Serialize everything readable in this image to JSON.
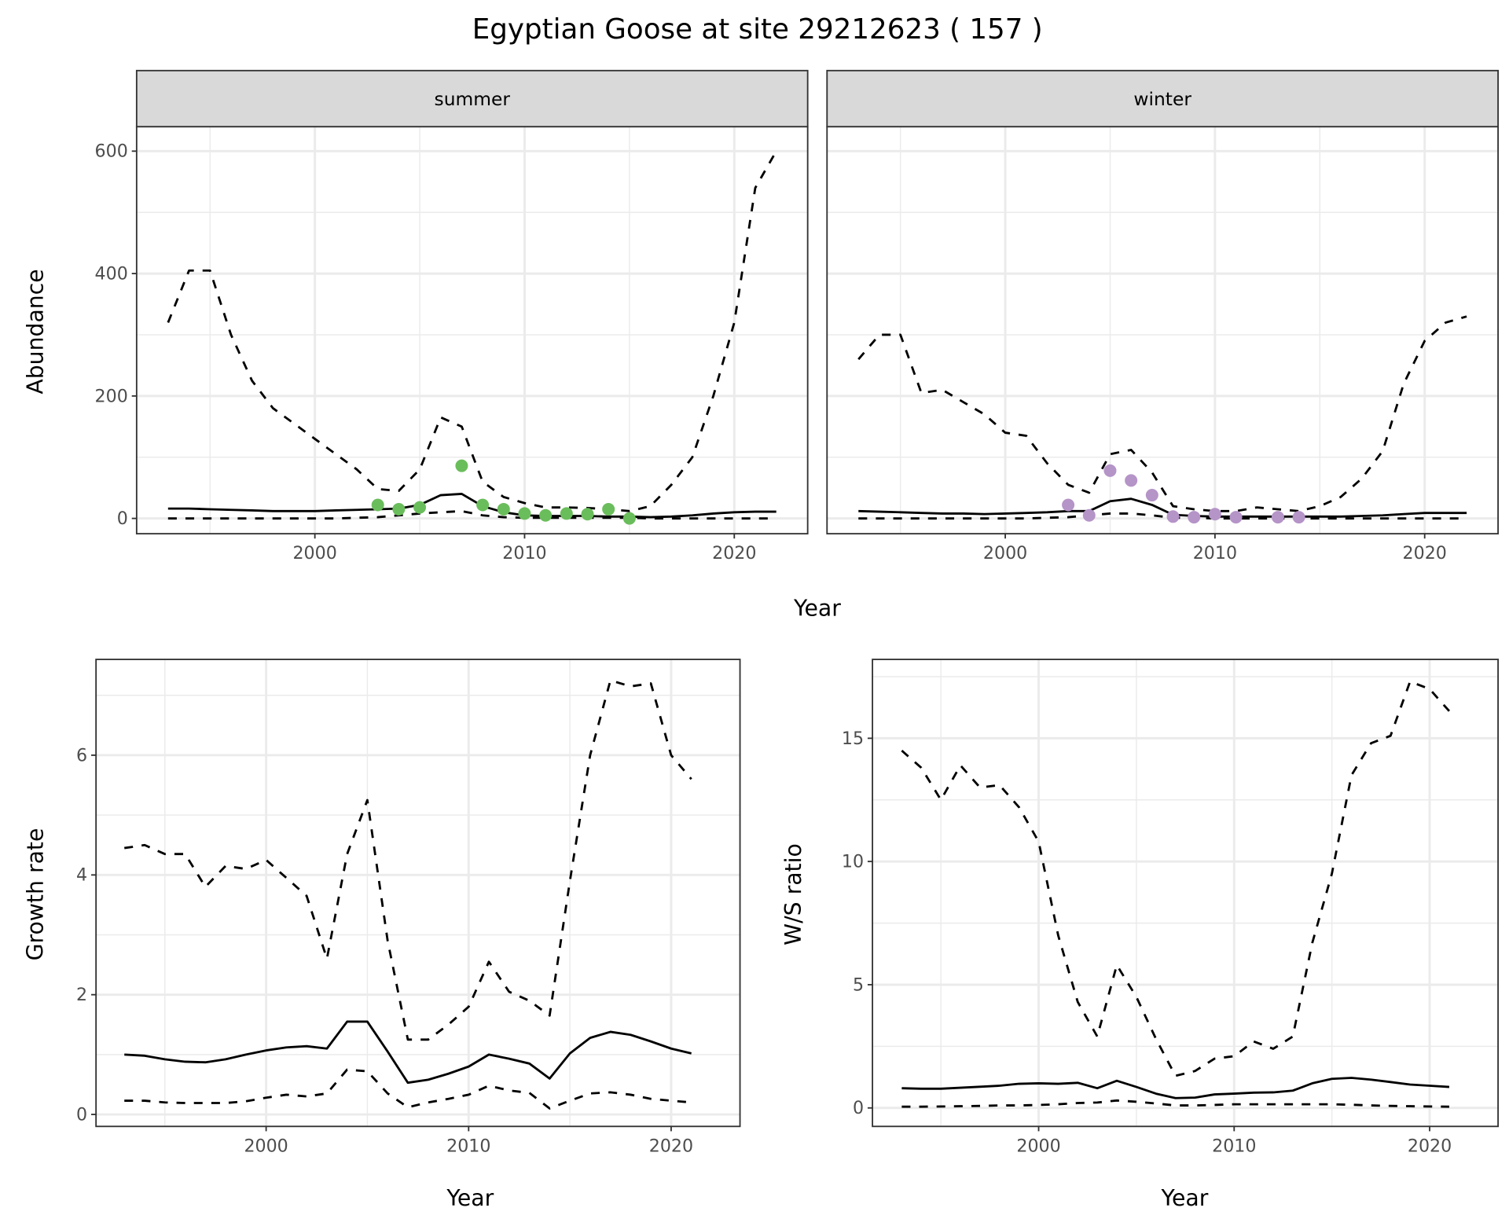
{
  "chart_data": [
    {
      "type": "line",
      "panel": "summer",
      "title": "Egyptian Goose at site 29212623 ( 157 )",
      "strip_label": "summer",
      "xlabel": "Year",
      "ylabel": "Abundance",
      "xlim": [
        1991.5,
        2023.5
      ],
      "ylim": [
        -25,
        640
      ],
      "xticks": [
        2000,
        2010,
        2020
      ],
      "yticks": [
        0,
        200,
        400,
        600
      ],
      "x": [
        1993,
        1994,
        1995,
        1996,
        1997,
        1998,
        1999,
        2000,
        2001,
        2002,
        2003,
        2004,
        2005,
        2006,
        2007,
        2008,
        2009,
        2010,
        2011,
        2012,
        2013,
        2014,
        2015,
        2016,
        2017,
        2018,
        2019,
        2020,
        2021,
        2022
      ],
      "series": [
        {
          "name": "upper",
          "style": "dashed",
          "values": [
            320,
            405,
            405,
            300,
            225,
            180,
            155,
            130,
            105,
            80,
            48,
            45,
            80,
            165,
            150,
            60,
            35,
            25,
            18,
            18,
            17,
            15,
            12,
            20,
            55,
            100,
            200,
            320,
            540,
            600
          ]
        },
        {
          "name": "estimate",
          "style": "solid",
          "values": [
            16,
            16,
            15,
            14,
            13,
            12,
            12,
            12,
            13,
            14,
            15,
            16,
            22,
            38,
            40,
            20,
            10,
            5,
            4,
            4,
            4,
            3,
            3,
            2,
            3,
            5,
            8,
            10,
            11,
            11
          ]
        },
        {
          "name": "lower",
          "style": "dashed",
          "values": [
            0,
            0,
            0,
            0,
            0,
            0,
            0,
            0,
            0,
            1,
            2,
            5,
            8,
            10,
            12,
            5,
            2,
            1,
            1,
            1,
            1,
            1,
            1,
            0,
            0,
            0,
            0,
            0,
            0,
            0
          ]
        }
      ],
      "points": {
        "color": "#6abd5b",
        "x": [
          2003,
          2004,
          2005,
          2007,
          2008,
          2009,
          2010,
          2011,
          2012,
          2013,
          2014,
          2015
        ],
        "y": [
          22,
          15,
          18,
          86,
          22,
          15,
          8,
          5,
          8,
          7,
          15,
          0
        ]
      }
    },
    {
      "type": "line",
      "panel": "winter",
      "strip_label": "winter",
      "xlabel": "Year",
      "ylabel": "Abundance",
      "xlim": [
        1991.5,
        2023.5
      ],
      "ylim": [
        -25,
        640
      ],
      "xticks": [
        2000,
        2010,
        2020
      ],
      "yticks": [],
      "x": [
        1993,
        1994,
        1995,
        1996,
        1997,
        1998,
        1999,
        2000,
        2001,
        2002,
        2003,
        2004,
        2005,
        2006,
        2007,
        2008,
        2009,
        2010,
        2011,
        2012,
        2013,
        2014,
        2015,
        2016,
        2017,
        2018,
        2019,
        2020,
        2021,
        2022
      ],
      "series": [
        {
          "name": "upper",
          "style": "dashed",
          "values": [
            260,
            300,
            300,
            205,
            210,
            190,
            170,
            140,
            135,
            90,
            55,
            42,
            105,
            112,
            75,
            20,
            15,
            12,
            12,
            18,
            15,
            12,
            20,
            35,
            65,
            110,
            220,
            290,
            320,
            330
          ]
        },
        {
          "name": "estimate",
          "style": "solid",
          "values": [
            12,
            11,
            10,
            9,
            8,
            8,
            7,
            8,
            9,
            10,
            12,
            12,
            28,
            32,
            22,
            6,
            4,
            3,
            3,
            3,
            3,
            3,
            3,
            3,
            4,
            5,
            7,
            9,
            9,
            9
          ]
        },
        {
          "name": "lower",
          "style": "dashed",
          "values": [
            0,
            0,
            0,
            0,
            0,
            0,
            0,
            0,
            0,
            1,
            2,
            5,
            8,
            8,
            5,
            1,
            1,
            0,
            0,
            0,
            0,
            0,
            0,
            0,
            0,
            0,
            0,
            0,
            0,
            0
          ]
        }
      ],
      "points": {
        "color": "#b594c8",
        "x": [
          2003,
          2004,
          2005,
          2006,
          2007,
          2008,
          2009,
          2010,
          2011,
          2013,
          2014
        ],
        "y": [
          22,
          5,
          78,
          62,
          38,
          3,
          2,
          7,
          2,
          2,
          2
        ]
      }
    },
    {
      "type": "line",
      "panel": "growth",
      "xlabel": "Year",
      "ylabel": "Growth rate",
      "xlim": [
        1991.6,
        2023.4
      ],
      "ylim": [
        -0.2,
        7.6
      ],
      "xticks": [
        2000,
        2010,
        2020
      ],
      "yticks": [
        0,
        2,
        4,
        6
      ],
      "x": [
        1993,
        1994,
        1995,
        1996,
        1997,
        1998,
        1999,
        2000,
        2001,
        2002,
        2003,
        2004,
        2005,
        2006,
        2007,
        2008,
        2009,
        2010,
        2011,
        2012,
        2013,
        2014,
        2015,
        2016,
        2017,
        2018,
        2019,
        2020,
        2021
      ],
      "series": [
        {
          "name": "upper",
          "style": "dashed",
          "values": [
            4.45,
            4.5,
            4.35,
            4.35,
            3.8,
            4.15,
            4.1,
            4.25,
            3.95,
            3.65,
            2.6,
            4.35,
            5.25,
            2.9,
            1.25,
            1.25,
            1.5,
            1.8,
            2.55,
            2.05,
            1.9,
            1.65,
            3.9,
            6.0,
            7.25,
            7.15,
            7.2,
            6.0,
            5.6
          ]
        },
        {
          "name": "estimate",
          "style": "solid",
          "values": [
            1.0,
            0.98,
            0.92,
            0.88,
            0.87,
            0.92,
            1.0,
            1.07,
            1.12,
            1.14,
            1.1,
            1.55,
            1.55,
            1.05,
            0.53,
            0.58,
            0.68,
            0.8,
            1.0,
            0.93,
            0.85,
            0.6,
            1.02,
            1.28,
            1.38,
            1.33,
            1.22,
            1.1,
            1.02
          ]
        },
        {
          "name": "lower",
          "style": "dashed",
          "values": [
            0.23,
            0.23,
            0.2,
            0.19,
            0.19,
            0.19,
            0.22,
            0.28,
            0.33,
            0.3,
            0.35,
            0.75,
            0.72,
            0.35,
            0.12,
            0.2,
            0.26,
            0.33,
            0.48,
            0.4,
            0.36,
            0.1,
            0.23,
            0.35,
            0.37,
            0.33,
            0.26,
            0.23,
            0.2
          ]
        }
      ]
    },
    {
      "type": "line",
      "panel": "ws_ratio",
      "xlabel": "Year",
      "ylabel": "W/S ratio",
      "xlim": [
        1991.5,
        2023.5
      ],
      "ylim": [
        -0.75,
        18.2
      ],
      "xticks": [
        2000,
        2010,
        2020
      ],
      "yticks": [
        0,
        5,
        10,
        15
      ],
      "x": [
        1993,
        1994,
        1995,
        1996,
        1997,
        1998,
        1999,
        2000,
        2001,
        2002,
        2003,
        2004,
        2005,
        2006,
        2007,
        2008,
        2009,
        2010,
        2011,
        2012,
        2013,
        2014,
        2015,
        2016,
        2017,
        2018,
        2019,
        2020,
        2021
      ],
      "series": [
        {
          "name": "upper",
          "style": "dashed",
          "values": [
            14.5,
            13.8,
            12.5,
            13.9,
            13.0,
            13.1,
            12.2,
            10.8,
            7.0,
            4.3,
            2.9,
            5.8,
            4.5,
            2.8,
            1.3,
            1.5,
            2.0,
            2.1,
            2.7,
            2.4,
            2.9,
            6.7,
            9.5,
            13.5,
            14.8,
            15.1,
            17.3,
            17.0,
            16.1
          ]
        },
        {
          "name": "estimate",
          "style": "solid",
          "values": [
            0.8,
            0.78,
            0.78,
            0.82,
            0.86,
            0.9,
            0.98,
            1.0,
            0.98,
            1.02,
            0.8,
            1.1,
            0.85,
            0.58,
            0.4,
            0.42,
            0.55,
            0.58,
            0.62,
            0.63,
            0.7,
            1.0,
            1.18,
            1.22,
            1.15,
            1.05,
            0.95,
            0.9,
            0.85
          ]
        },
        {
          "name": "lower",
          "style": "dashed",
          "values": [
            0.05,
            0.05,
            0.06,
            0.07,
            0.08,
            0.1,
            0.1,
            0.12,
            0.15,
            0.2,
            0.22,
            0.3,
            0.25,
            0.18,
            0.1,
            0.1,
            0.12,
            0.15,
            0.15,
            0.15,
            0.15,
            0.15,
            0.15,
            0.13,
            0.1,
            0.08,
            0.07,
            0.06,
            0.05
          ]
        }
      ]
    }
  ]
}
